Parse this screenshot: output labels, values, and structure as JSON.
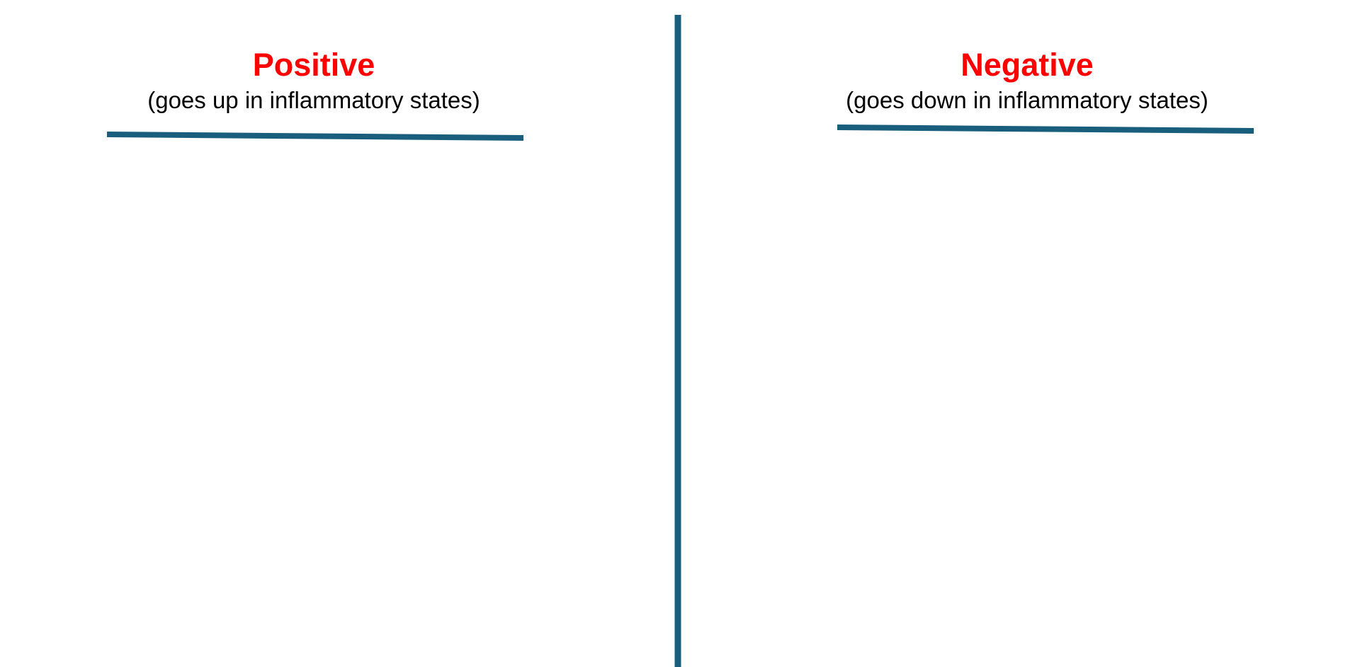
{
  "colors": {
    "title": "#ff0000",
    "rule": "#1a5e7e",
    "subtitle": "#000000",
    "background": "#ffffff"
  },
  "columns": [
    {
      "title": "Positive",
      "subtitle": "(goes up in inflammatory states)"
    },
    {
      "title": "Negative",
      "subtitle": "(goes down in inflammatory states)"
    }
  ]
}
